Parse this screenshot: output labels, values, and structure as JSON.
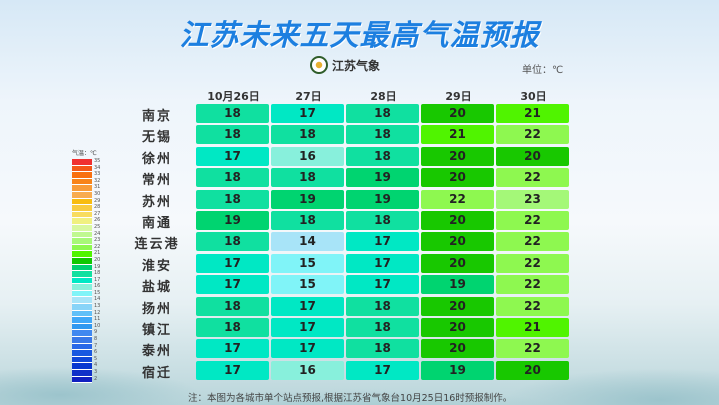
{
  "title": "江苏未来五天最高气温预报",
  "logo_text": "江苏气象",
  "unit": "单位：℃",
  "dates": [
    "10月26日",
    "27日",
    "28日",
    "29日",
    "30日"
  ],
  "rows": [
    {
      "city": "南京",
      "temps": [
        18,
        17,
        18,
        20,
        21
      ]
    },
    {
      "city": "无锡",
      "temps": [
        18,
        18,
        18,
        21,
        22
      ]
    },
    {
      "city": "徐州",
      "temps": [
        17,
        16,
        18,
        20,
        20
      ]
    },
    {
      "city": "常州",
      "temps": [
        18,
        18,
        19,
        20,
        22
      ]
    },
    {
      "city": "苏州",
      "temps": [
        18,
        19,
        19,
        22,
        23
      ]
    },
    {
      "city": "南通",
      "temps": [
        19,
        18,
        18,
        20,
        22
      ]
    },
    {
      "city": "连云港",
      "temps": [
        18,
        14,
        17,
        20,
        22
      ]
    },
    {
      "city": "淮安",
      "temps": [
        17,
        15,
        17,
        20,
        22
      ]
    },
    {
      "city": "盐城",
      "temps": [
        17,
        15,
        17,
        19,
        22
      ]
    },
    {
      "city": "扬州",
      "temps": [
        18,
        17,
        18,
        20,
        22
      ]
    },
    {
      "city": "镇江",
      "temps": [
        18,
        17,
        18,
        20,
        21
      ]
    },
    {
      "city": "泰州",
      "temps": [
        17,
        17,
        18,
        20,
        22
      ]
    },
    {
      "city": "宿迁",
      "temps": [
        17,
        16,
        17,
        19,
        20
      ]
    }
  ],
  "legend": {
    "title": "气温：℃",
    "labels": [
      35,
      34,
      33,
      32,
      31,
      30,
      29,
      28,
      27,
      26,
      25,
      24,
      23,
      22,
      21,
      20,
      19,
      18,
      17,
      16,
      15,
      14,
      13,
      12,
      11,
      10,
      9,
      8,
      7,
      6,
      5,
      4,
      3,
      2
    ]
  },
  "temp_colors": {
    "14": "#a8e4f8",
    "15": "#80f4f8",
    "16": "#88f0dc",
    "17": "#00e8c4",
    "18": "#10e0a0",
    "19": "#00d470",
    "20": "#18c800",
    "21": "#50f400",
    "22": "#8ef850",
    "23": "#a4f878"
  },
  "note": "注：本图为各城市单个站点预报,根据江苏省气象台10月25日16时预报制作。"
}
